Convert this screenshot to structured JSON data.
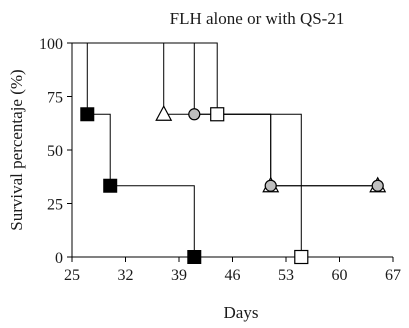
{
  "chart_data": {
    "type": "line",
    "title": "FLH alone or with QS-21",
    "xlabel": "Days",
    "ylabel": "Survival percentaje (%)",
    "xlim": [
      25,
      67
    ],
    "ylim": [
      0,
      100
    ],
    "xticks": [
      25,
      32,
      39,
      46,
      53,
      60,
      67
    ],
    "yticks": [
      0,
      25,
      50,
      75,
      100
    ],
    "grid": false,
    "series": [
      {
        "marker": "filled-square",
        "color": "#000000",
        "x": [
          25,
          27,
          27,
          30,
          30,
          41,
          41
        ],
        "y": [
          100,
          100,
          66.7,
          66.7,
          33.3,
          33.3,
          0
        ],
        "markers": [
          [
            27,
            66.7
          ],
          [
            30,
            33.3
          ],
          [
            41,
            0
          ]
        ]
      },
      {
        "marker": "open-triangle",
        "color": "#ffffff",
        "x": [
          25,
          37,
          37,
          51,
          51,
          65
        ],
        "y": [
          100,
          100,
          66.7,
          66.7,
          33.3,
          33.3
        ],
        "markers": [
          [
            37,
            66.7
          ],
          [
            51,
            33.3
          ],
          [
            65,
            33.3
          ]
        ]
      },
      {
        "marker": "gray-circle",
        "color": "#bfbfbf",
        "x": [
          25,
          41,
          41,
          51,
          51,
          65
        ],
        "y": [
          100,
          100,
          66.7,
          66.7,
          33.3,
          33.3
        ],
        "markers": [
          [
            41,
            66.7
          ],
          [
            51,
            33.3
          ],
          [
            65,
            33.3
          ]
        ]
      },
      {
        "marker": "open-square",
        "color": "#ffffff",
        "x": [
          25,
          44,
          44,
          55,
          55
        ],
        "y": [
          100,
          100,
          66.7,
          66.7,
          0
        ],
        "markers": [
          [
            44,
            66.7
          ],
          [
            55,
            0
          ]
        ]
      }
    ]
  }
}
